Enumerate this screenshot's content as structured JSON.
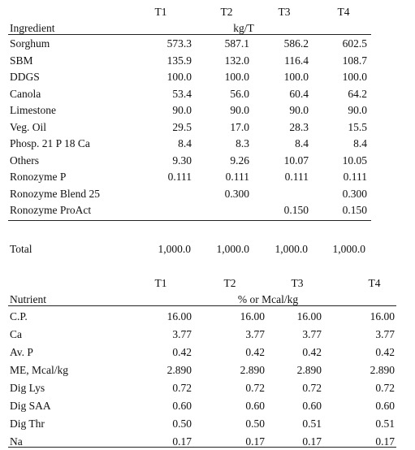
{
  "ingredients_table": {
    "col_headers": [
      "T1",
      "T2",
      "T3",
      "T4"
    ],
    "row_header": "Ingredient",
    "unit": "kg/T",
    "rows": [
      {
        "name": "Sorghum",
        "values": [
          "573.3",
          "587.1",
          "586.2",
          "602.5"
        ]
      },
      {
        "name": "SBM",
        "values": [
          "135.9",
          "132.0",
          "116.4",
          "108.7"
        ]
      },
      {
        "name": "DDGS",
        "values": [
          "100.0",
          "100.0",
          "100.0",
          "100.0"
        ]
      },
      {
        "name": "Canola",
        "values": [
          "53.4",
          "56.0",
          "60.4",
          "64.2"
        ]
      },
      {
        "name": "Limestone",
        "values": [
          "90.0",
          "90.0",
          "90.0",
          "90.0"
        ]
      },
      {
        "name": "Veg. Oil",
        "values": [
          "29.5",
          "17.0",
          "28.3",
          "15.5"
        ]
      },
      {
        "name": "Phosp. 21 P 18 Ca",
        "values": [
          "8.4",
          "8.3",
          "8.4",
          "8.4"
        ]
      },
      {
        "name": "Others",
        "values": [
          "9.30",
          "9.26",
          "10.07",
          "10.05"
        ]
      },
      {
        "name": "Ronozyme P",
        "values": [
          "0.111",
          "0.111",
          "0.111",
          "0.111"
        ]
      },
      {
        "name": "Ronozyme Blend 25",
        "values": [
          "",
          "0.300",
          "",
          "0.300"
        ]
      },
      {
        "name": "Ronozyme ProAct",
        "values": [
          "",
          "",
          "0.150",
          "0.150"
        ]
      }
    ],
    "total": {
      "name": "Total",
      "values": [
        "1,000.0",
        "1,000.0",
        "1,000.0",
        "1,000.0"
      ]
    }
  },
  "nutrients_table": {
    "col_headers": [
      "T1",
      "T2",
      "T3",
      "T4"
    ],
    "row_header": "Nutrient",
    "unit": "% or Mcal/kg",
    "rows": [
      {
        "name": "C.P.",
        "values": [
          "16.00",
          "16.00",
          "16.00",
          "16.00"
        ]
      },
      {
        "name": "Ca",
        "values": [
          "3.77",
          "3.77",
          "3.77",
          "3.77"
        ]
      },
      {
        "name": "Av. P",
        "values": [
          "0.42",
          "0.42",
          "0.42",
          "0.42"
        ]
      },
      {
        "name": "ME, Mcal/kg",
        "values": [
          "2.890",
          "2.890",
          "2.890",
          "2.890"
        ]
      },
      {
        "name": "Dig Lys",
        "values": [
          "0.72",
          "0.72",
          "0.72",
          "0.72"
        ]
      },
      {
        "name": "Dig SAA",
        "values": [
          "0.60",
          "0.60",
          "0.60",
          "0.60"
        ]
      },
      {
        "name": "Dig Thr",
        "values": [
          "0.50",
          "0.50",
          "0.51",
          "0.51"
        ]
      },
      {
        "name": "Na",
        "values": [
          "0.17",
          "0.17",
          "0.17",
          "0.17"
        ]
      }
    ]
  }
}
